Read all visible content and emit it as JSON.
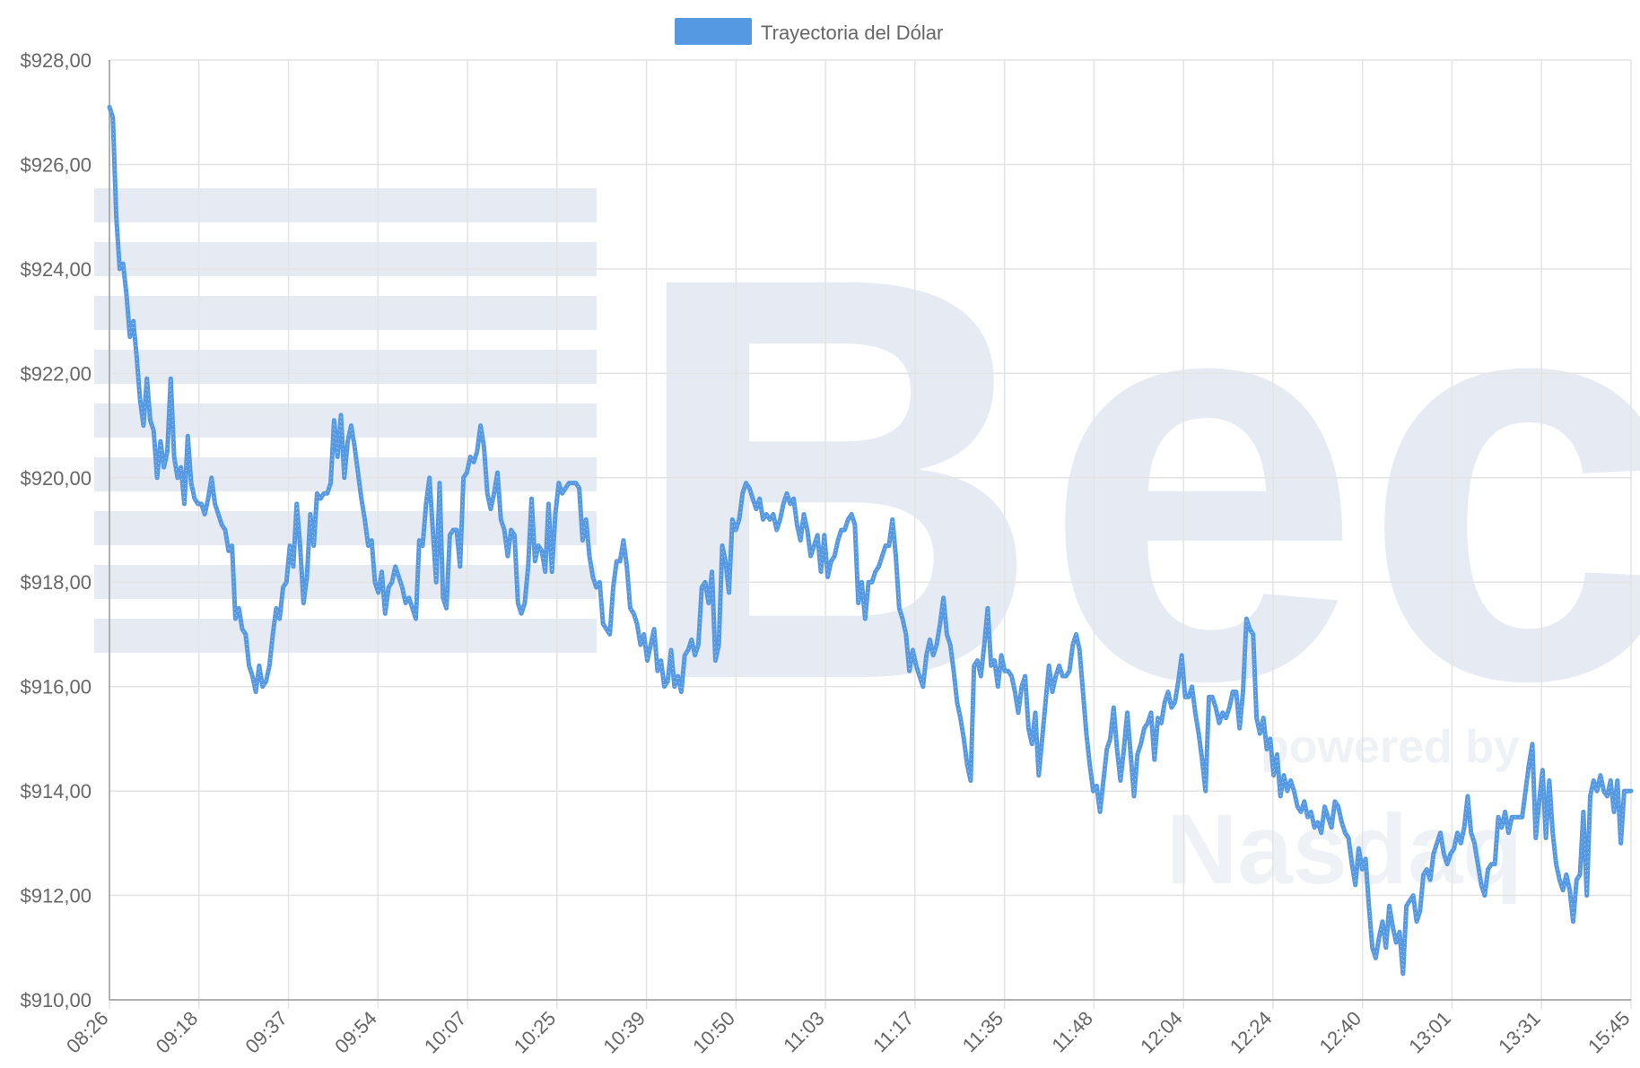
{
  "chart_data": {
    "type": "line",
    "legend": {
      "label": "Trayectoria del Dólar",
      "position": "top-center",
      "color": "#5599e3"
    },
    "ylim": [
      910,
      928
    ],
    "yticks": [
      910,
      912,
      914,
      916,
      918,
      920,
      922,
      924,
      926,
      928
    ],
    "ytick_labels": [
      "$910,00",
      "$912,00",
      "$914,00",
      "$916,00",
      "$918,00",
      "$920,00",
      "$922,00",
      "$924,00",
      "$926,00",
      "$928,00"
    ],
    "xtick_labels": [
      "08:26",
      "09:18",
      "09:37",
      "09:54",
      "10:07",
      "10:25",
      "10:39",
      "10:50",
      "11:03",
      "11:17",
      "11:35",
      "11:48",
      "12:04",
      "12:24",
      "12:40",
      "13:01",
      "13:31",
      "15:45"
    ],
    "grid": true,
    "series": [
      {
        "name": "Trayectoria del Dólar",
        "color": "#5599e3",
        "values": [
          927.1,
          926.9,
          925.0,
          924.0,
          924.1,
          923.5,
          922.7,
          923.0,
          922.3,
          921.5,
          921.0,
          921.9,
          921.1,
          920.9,
          920.0,
          920.7,
          920.2,
          920.5,
          921.9,
          920.4,
          920.0,
          920.2,
          919.5,
          920.8,
          919.9,
          919.6,
          919.5,
          919.5,
          919.3,
          919.6,
          920.0,
          919.5,
          919.3,
          919.1,
          919.0,
          918.6,
          918.7,
          917.3,
          917.5,
          917.1,
          917.0,
          916.4,
          916.2,
          915.9,
          916.4,
          916.0,
          916.1,
          916.4,
          917.0,
          917.5,
          917.3,
          917.9,
          918.0,
          918.7,
          918.3,
          919.5,
          918.7,
          917.6,
          918.1,
          919.3,
          918.7,
          919.7,
          919.6,
          919.7,
          919.7,
          919.9,
          921.1,
          920.4,
          921.2,
          920.0,
          920.7,
          921.0,
          920.6,
          920.1,
          919.6,
          919.2,
          918.7,
          918.8,
          918.0,
          917.8,
          918.2,
          917.4,
          917.9,
          918.0,
          918.3,
          918.1,
          917.9,
          917.6,
          917.7,
          917.5,
          917.3,
          918.8,
          918.7,
          919.5,
          920.0,
          919.0,
          918.0,
          919.9,
          917.7,
          917.5,
          918.9,
          919.0,
          919.0,
          918.3,
          920.0,
          920.1,
          920.4,
          920.3,
          920.5,
          921.0,
          920.6,
          919.7,
          919.4,
          919.7,
          920.1,
          919.2,
          919.0,
          918.5,
          919.0,
          918.9,
          917.6,
          917.4,
          917.6,
          918.3,
          919.6,
          918.4,
          918.7,
          918.6,
          918.2,
          919.5,
          918.2,
          919.3,
          919.9,
          919.7,
          919.8,
          919.9,
          919.9,
          919.9,
          919.8,
          918.8,
          919.2,
          918.5,
          918.1,
          917.9,
          918.0,
          917.2,
          917.1,
          917.0,
          917.9,
          918.4,
          918.4,
          918.8,
          918.3,
          917.5,
          917.4,
          917.2,
          916.8,
          917.0,
          916.5,
          916.8,
          917.1,
          916.3,
          916.5,
          916.0,
          916.1,
          916.7,
          916.0,
          916.2,
          915.9,
          916.6,
          916.7,
          916.9,
          916.6,
          916.8,
          917.9,
          918.0,
          917.6,
          918.2,
          916.5,
          916.8,
          918.7,
          918.4,
          917.8,
          919.2,
          919.0,
          919.2,
          919.7,
          919.9,
          919.8,
          919.6,
          919.4,
          919.6,
          919.2,
          919.3,
          919.2,
          919.3,
          919.0,
          919.2,
          919.5,
          919.7,
          919.5,
          919.6,
          919.1,
          918.8,
          919.3,
          919.0,
          918.5,
          918.7,
          918.9,
          918.2,
          918.9,
          918.1,
          918.4,
          918.5,
          918.8,
          919.0,
          919.0,
          919.2,
          919.3,
          919.1,
          917.6,
          918.0,
          917.3,
          918.0,
          918.0,
          918.2,
          918.3,
          918.5,
          918.7,
          918.7,
          919.2,
          918.5,
          917.5,
          917.3,
          917.0,
          916.3,
          916.7,
          916.4,
          916.2,
          916.0,
          916.6,
          916.9,
          916.6,
          916.8,
          917.2,
          917.7,
          917.0,
          916.8,
          916.3,
          915.7,
          915.4,
          915.0,
          914.5,
          914.2,
          916.4,
          916.5,
          916.2,
          916.8,
          917.5,
          916.4,
          916.5,
          916.0,
          916.6,
          916.3,
          916.3,
          916.2,
          915.9,
          915.5,
          916.0,
          916.2,
          915.2,
          914.9,
          915.5,
          914.3,
          915.0,
          915.7,
          916.4,
          915.9,
          916.2,
          916.4,
          916.2,
          916.2,
          916.3,
          916.8,
          917.0,
          916.7,
          915.9,
          915.1,
          914.5,
          914.0,
          914.1,
          913.6,
          914.2,
          914.8,
          915.0,
          915.6,
          914.8,
          914.2,
          914.8,
          915.5,
          914.7,
          913.9,
          914.7,
          914.9,
          915.2,
          915.3,
          915.5,
          914.6,
          915.4,
          915.3,
          915.7,
          915.9,
          915.6,
          915.7,
          916.1,
          916.6,
          915.8,
          915.8,
          916.0,
          915.5,
          915.1,
          914.6,
          914.0,
          915.8,
          915.8,
          915.6,
          915.3,
          915.5,
          915.4,
          915.6,
          915.9,
          915.9,
          915.2,
          915.9,
          917.3,
          917.1,
          917.0,
          915.4,
          915.1,
          915.4,
          914.8,
          915.0,
          914.3,
          914.7,
          913.9,
          914.3,
          914.0,
          914.2,
          914.0,
          913.7,
          913.6,
          913.8,
          913.5,
          913.6,
          913.3,
          913.4,
          913.2,
          913.7,
          913.5,
          913.3,
          913.8,
          913.7,
          913.4,
          913.2,
          913.1,
          912.6,
          912.2,
          912.9,
          912.5,
          912.7,
          911.8,
          911.0,
          910.8,
          911.2,
          911.5,
          911.0,
          911.8,
          911.4,
          911.1,
          911.3,
          910.5,
          911.8,
          911.9,
          912.0,
          911.5,
          911.7,
          912.4,
          912.5,
          912.3,
          912.8,
          913.0,
          913.2,
          912.8,
          912.6,
          912.8,
          912.9,
          913.2,
          913.0,
          913.3,
          913.9,
          913.2,
          913.0,
          912.6,
          912.2,
          912.0,
          912.5,
          912.6,
          912.6,
          913.5,
          913.3,
          913.6,
          913.2,
          913.5,
          913.5,
          913.5,
          913.5,
          914.0,
          914.5,
          914.9,
          913.1,
          913.8,
          914.4,
          913.1,
          914.2,
          913.2,
          912.6,
          912.3,
          912.1,
          912.4,
          912.1,
          911.5,
          912.3,
          912.4,
          913.6,
          912.0,
          913.9,
          914.2,
          914.0,
          914.3,
          914.0,
          913.9,
          914.2,
          913.6,
          914.2,
          913.0,
          914.0,
          914.0,
          914.0
        ]
      }
    ]
  },
  "watermark": {
    "logo_text": "Bec",
    "tagline_powered": "powered by",
    "tagline_partner": "Nasdaq"
  }
}
